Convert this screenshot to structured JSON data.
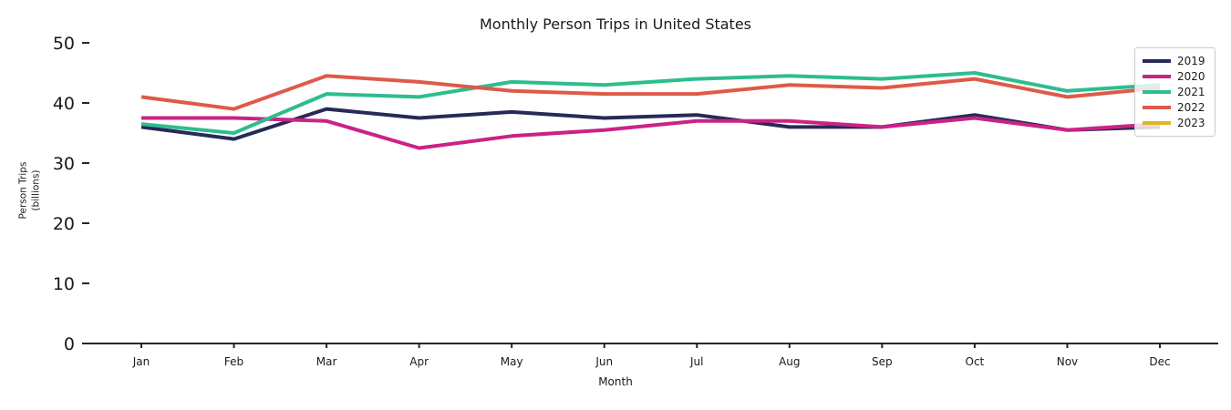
{
  "chart_data": {
    "type": "line",
    "title": "Monthly Person Trips in United States",
    "xlabel": "Month",
    "ylabel_lines": [
      "Person Trips",
      "(billions)"
    ],
    "categories": [
      "Jan",
      "Feb",
      "Mar",
      "Apr",
      "May",
      "Jun",
      "Jul",
      "Aug",
      "Sep",
      "Oct",
      "Nov",
      "Dec"
    ],
    "yticks": [
      0,
      10,
      20,
      30,
      40,
      50
    ],
    "ylim": [
      0,
      52
    ],
    "grid": false,
    "legend_position": "upper right",
    "series": [
      {
        "name": "2019",
        "color": "#272a56",
        "values": [
          36,
          34,
          39,
          37.5,
          38.5,
          37.5,
          38,
          36,
          36,
          38,
          35.5,
          36
        ]
      },
      {
        "name": "2020",
        "color": "#cb2286",
        "values": [
          37.5,
          37.5,
          37,
          32.5,
          34.5,
          35.5,
          37,
          37,
          36,
          37.5,
          35.5,
          36.5
        ]
      },
      {
        "name": "2021",
        "color": "#2ebd8e",
        "values": [
          36.5,
          35,
          41.5,
          41,
          43.5,
          43,
          44,
          44.5,
          44,
          45,
          42,
          43
        ]
      },
      {
        "name": "2022",
        "color": "#de5a49",
        "values": [
          41,
          39,
          44.5,
          43.5,
          42,
          41.5,
          41.5,
          43,
          42.5,
          44,
          41,
          42.5
        ]
      },
      {
        "name": "2023",
        "color": "#dfb623",
        "values": []
      }
    ]
  },
  "colors": {
    "text": "#1a1a1a",
    "spine": "#262626",
    "legend_border": "#cccccc"
  }
}
